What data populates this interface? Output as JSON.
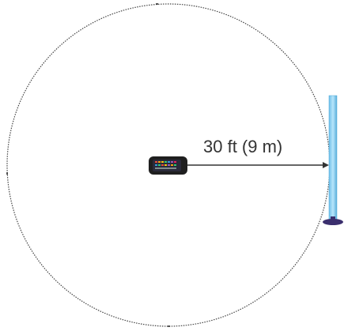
{
  "diagram": {
    "distance_label": "30 ft (9 m)",
    "colors": {
      "circle": "#444444",
      "arrow": "#333333",
      "device_body": "#1f1f1f",
      "pole": "#8fd1f2",
      "pole_edge": "#4aa8d8",
      "base": "#3b2f6e"
    },
    "icons": {
      "device": "hub-device-icon",
      "pole": "light-pole-icon"
    }
  }
}
